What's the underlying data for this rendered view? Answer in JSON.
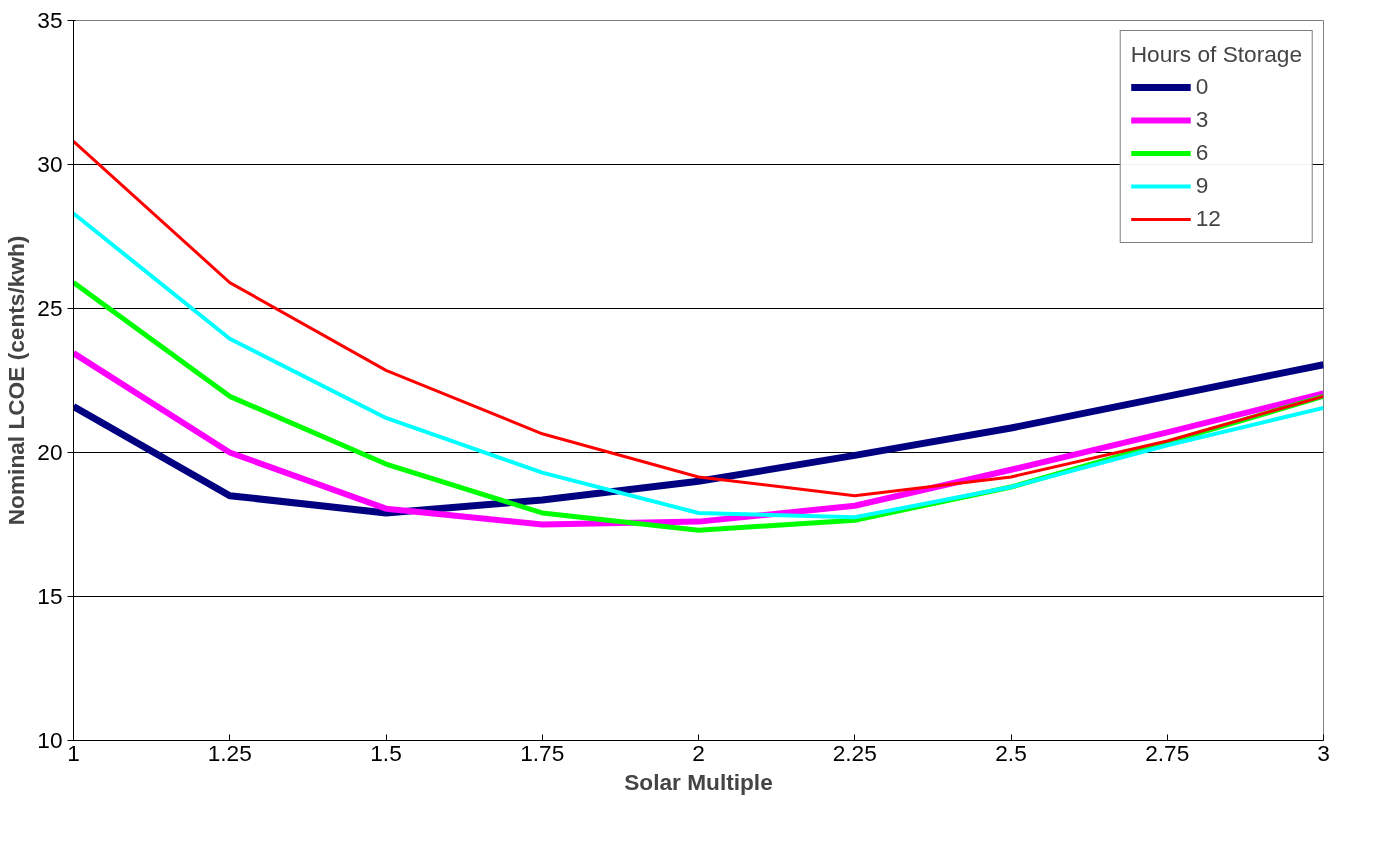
{
  "chart_data": {
    "type": "line",
    "xlabel": "Solar Multiple",
    "ylabel": "Nominal LCOE (cents/kwh)",
    "legend_title": "Hours of Storage",
    "x": [
      1,
      1.25,
      1.5,
      1.75,
      2,
      2.25,
      2.5,
      2.75,
      3
    ],
    "series": [
      {
        "name": "0",
        "color": "#000080",
        "values": [
          21.6,
          18.5,
          17.9,
          18.35,
          19.0,
          19.9,
          20.85,
          21.95,
          23.05
        ]
      },
      {
        "name": "3",
        "color": "#ff00ff",
        "values": [
          23.45,
          20.0,
          18.05,
          17.5,
          17.6,
          18.15,
          19.4,
          20.7,
          22.05
        ]
      },
      {
        "name": "6",
        "color": "#00ff00",
        "values": [
          25.9,
          21.95,
          19.6,
          17.9,
          17.3,
          17.65,
          18.8,
          20.35,
          21.95
        ]
      },
      {
        "name": "9",
        "color": "#00ffff",
        "values": [
          28.3,
          23.95,
          21.2,
          19.3,
          17.9,
          17.75,
          18.8,
          20.25,
          21.55
        ]
      },
      {
        "name": "12",
        "color": "#ff0000",
        "values": [
          30.8,
          25.9,
          22.85,
          20.65,
          19.15,
          18.5,
          19.15,
          20.4,
          21.95
        ]
      }
    ],
    "xlim": [
      1,
      3
    ],
    "xticks": [
      1,
      1.25,
      1.5,
      1.75,
      2,
      2.25,
      2.5,
      2.75,
      3
    ],
    "ylim": [
      10,
      35
    ],
    "yticks": [
      10,
      15,
      20,
      25,
      30,
      35
    ],
    "grid": "y",
    "legend": "top right",
    "marker": "none",
    "line_style": "solid"
  }
}
